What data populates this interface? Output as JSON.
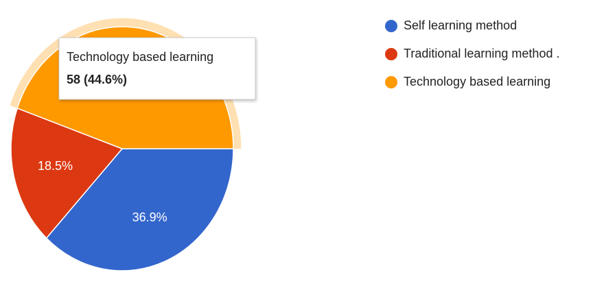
{
  "chart_data": {
    "type": "pie",
    "categories": [
      "Self learning method",
      "Traditional learning method .",
      "Technology based learning"
    ],
    "values": [
      48,
      24,
      58
    ],
    "value_labels": [
      "36.9%",
      "18.5%",
      "44.6%"
    ],
    "colors": [
      "#3366cc",
      "#dc3912",
      "#ff9900"
    ],
    "highlight": 2,
    "tooltip": "58 (44.6%)"
  }
}
